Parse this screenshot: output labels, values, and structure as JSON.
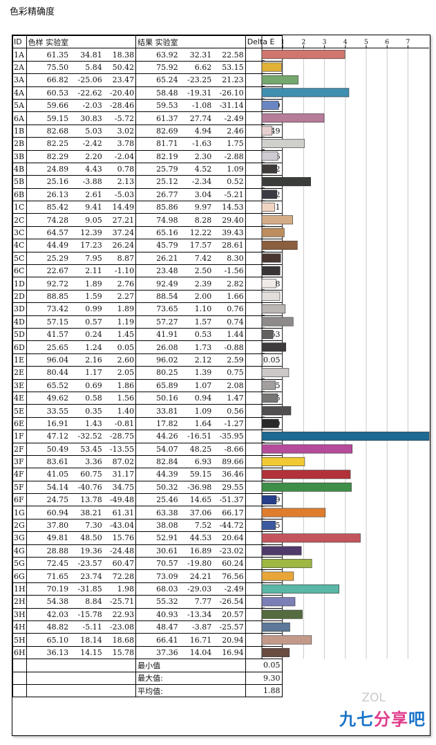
{
  "page_title": "色彩精确度",
  "headers": {
    "id": "ID",
    "sample": "色样 实验室",
    "result": "结果 实验室",
    "delta": "Delta E"
  },
  "chart_data": {
    "type": "bar",
    "orientation": "horizontal",
    "xlim": [
      0,
      8
    ],
    "x_ticks": [
      "1",
      "2",
      "3",
      "4",
      "5",
      "6",
      "7"
    ],
    "grid": true,
    "rows": [
      {
        "id": "1A",
        "s": [
          "61.35",
          "34.81",
          "18.38"
        ],
        "r": [
          "63.92",
          "32.31",
          "22.58"
        ],
        "de": "3.98",
        "v": 3.98,
        "c": "#d0766e"
      },
      {
        "id": "2A",
        "s": [
          "75.50",
          "5.84",
          "50.42"
        ],
        "r": [
          "75.92",
          "6.62",
          "53.15"
        ],
        "de": "0.94",
        "v": 0.94,
        "c": "#e1b135"
      },
      {
        "id": "3A",
        "s": [
          "66.82",
          "-25.06",
          "23.47"
        ],
        "r": [
          "65.24",
          "-23.25",
          "21.23"
        ],
        "de": "1.74",
        "v": 1.74,
        "c": "#74a86e"
      },
      {
        "id": "4A",
        "s": [
          "60.53",
          "-22.62",
          "-20.40"
        ],
        "r": [
          "58.48",
          "-19.31",
          "-26.10"
        ],
        "de": "4.17",
        "v": 4.17,
        "c": "#3f8fb0"
      },
      {
        "id": "5A",
        "s": [
          "59.66",
          "-2.03",
          "-28.46"
        ],
        "r": [
          "59.53",
          "-1.08",
          "-31.14"
        ],
        "de": "0.80",
        "v": 0.8,
        "c": "#6a86c2"
      },
      {
        "id": "6A",
        "s": [
          "59.15",
          "30.83",
          "-5.72"
        ],
        "r": [
          "61.37",
          "27.74",
          "-2.49"
        ],
        "de": "2.98",
        "v": 2.98,
        "c": "#b67d9a"
      },
      {
        "id": "1B",
        "s": [
          "82.68",
          "5.03",
          "3.02"
        ],
        "r": [
          "82.69",
          "4.94",
          "2.46"
        ],
        "de": "0.49",
        "v": 0.49,
        "c": "#e7cfd0"
      },
      {
        "id": "2B",
        "s": [
          "82.25",
          "-2.42",
          "3.78"
        ],
        "r": [
          "81.71",
          "-1.63",
          "1.75"
        ],
        "de": "2.04",
        "v": 2.04,
        "c": "#cfcfcb"
      },
      {
        "id": "3B",
        "s": [
          "82.29",
          "2.20",
          "-2.04"
        ],
        "r": [
          "82.19",
          "2.30",
          "-2.88"
        ],
        "de": "0.76",
        "v": 0.76,
        "c": "#cfcbd3"
      },
      {
        "id": "4B",
        "s": [
          "24.89",
          "4.43",
          "0.78"
        ],
        "r": [
          "25.79",
          "4.52",
          "1.09"
        ],
        "de": "0.72",
        "v": 0.72,
        "c": "#3f3a3a"
      },
      {
        "id": "5B",
        "s": [
          "25.16",
          "-3.88",
          "2.13"
        ],
        "r": [
          "25.12",
          "-2.34",
          "0.52"
        ],
        "de": "2.34",
        "v": 2.34,
        "c": "#3a3d3a"
      },
      {
        "id": "6B",
        "s": [
          "26.13",
          "2.61",
          "-5.03"
        ],
        "r": [
          "26.77",
          "3.04",
          "-5.21"
        ],
        "de": "0.72",
        "v": 0.72,
        "c": "#3c3a44"
      },
      {
        "id": "1C",
        "s": [
          "85.42",
          "9.41",
          "14.49"
        ],
        "r": [
          "85.86",
          "9.97",
          "14.53"
        ],
        "de": "0.61",
        "v": 0.61,
        "c": "#f0d4c2"
      },
      {
        "id": "2C",
        "s": [
          "74.28",
          "9.05",
          "27.21"
        ],
        "r": [
          "74.98",
          "8.28",
          "29.40"
        ],
        "de": "1.48",
        "v": 1.48,
        "c": "#d4ad88"
      },
      {
        "id": "3C",
        "s": [
          "64.57",
          "12.39",
          "37.24"
        ],
        "r": [
          "65.16",
          "12.22",
          "39.43"
        ],
        "de": "1.07",
        "v": 1.07,
        "c": "#bd8d5d"
      },
      {
        "id": "4C",
        "s": [
          "44.49",
          "17.23",
          "26.24"
        ],
        "r": [
          "45.79",
          "17.57",
          "28.61"
        ],
        "de": "1.70",
        "v": 1.7,
        "c": "#8c5f3f"
      },
      {
        "id": "5C",
        "s": [
          "25.29",
          "7.95",
          "8.87"
        ],
        "r": [
          "26.21",
          "7.42",
          "8.30"
        ],
        "de": "0.90",
        "v": 0.9,
        "c": "#4a3630"
      },
      {
        "id": "6C",
        "s": [
          "22.67",
          "2.11",
          "-1.10"
        ],
        "r": [
          "23.48",
          "2.50",
          "-1.56"
        ],
        "de": "0.87",
        "v": 0.87,
        "c": "#393536"
      },
      {
        "id": "1D",
        "s": [
          "92.72",
          "1.89",
          "2.76"
        ],
        "r": [
          "92.49",
          "2.39",
          "2.82"
        ],
        "de": "0.68",
        "v": 0.68,
        "c": "#f0ebe8"
      },
      {
        "id": "2D",
        "s": [
          "88.85",
          "1.59",
          "2.27"
        ],
        "r": [
          "88.54",
          "2.00",
          "1.66"
        ],
        "de": "0.86",
        "v": 0.86,
        "c": "#e3dedc"
      },
      {
        "id": "3D",
        "s": [
          "73.42",
          "0.99",
          "1.89"
        ],
        "r": [
          "73.65",
          "1.10",
          "0.76"
        ],
        "de": "1.12",
        "v": 1.12,
        "c": "#b9b6b4"
      },
      {
        "id": "4D",
        "s": [
          "57.15",
          "0.57",
          "1.19"
        ],
        "r": [
          "57.27",
          "1.57",
          "0.74"
        ],
        "de": "1.50",
        "v": 1.5,
        "c": "#8d8a89"
      },
      {
        "id": "5D",
        "s": [
          "41.57",
          "0.24",
          "1.45"
        ],
        "r": [
          "41.91",
          "0.53",
          "1.44"
        ],
        "de": "0.53",
        "v": 0.53,
        "c": "#636160"
      },
      {
        "id": "6D",
        "s": [
          "25.65",
          "1.24",
          "0.05"
        ],
        "r": [
          "26.08",
          "1.73",
          "-0.88"
        ],
        "de": "1.15",
        "v": 1.15,
        "c": "#3d3b3c"
      },
      {
        "id": "1E",
        "s": [
          "96.04",
          "2.16",
          "2.60"
        ],
        "r": [
          "96.02",
          "2.12",
          "2.59"
        ],
        "de": "0.05",
        "v": 0.05,
        "c": "#f7f2f0"
      },
      {
        "id": "2E",
        "s": [
          "80.44",
          "1.17",
          "2.05"
        ],
        "r": [
          "80.25",
          "1.39",
          "0.75"
        ],
        "de": "1.29",
        "v": 1.29,
        "c": "#cbc8c7"
      },
      {
        "id": "3E",
        "s": [
          "65.52",
          "0.69",
          "1.86"
        ],
        "r": [
          "65.89",
          "1.07",
          "2.08"
        ],
        "de": "0.65",
        "v": 0.65,
        "c": "#a29f9e"
      },
      {
        "id": "4E",
        "s": [
          "49.62",
          "0.58",
          "1.56"
        ],
        "r": [
          "50.16",
          "0.94",
          "1.47"
        ],
        "de": "0.75",
        "v": 0.75,
        "c": "#787675"
      },
      {
        "id": "5E",
        "s": [
          "33.55",
          "0.35",
          "1.40"
        ],
        "r": [
          "33.81",
          "1.09",
          "0.56"
        ],
        "de": "1.39",
        "v": 1.39,
        "c": "#504e4e"
      },
      {
        "id": "6E",
        "s": [
          "16.91",
          "1.43",
          "-0.81"
        ],
        "r": [
          "17.82",
          "1.64",
          "-1.27"
        ],
        "de": "0.80",
        "v": 0.8,
        "c": "#2b2a2b"
      },
      {
        "id": "1F",
        "s": [
          "47.12",
          "-32.52",
          "-28.75"
        ],
        "r": [
          "44.26",
          "-16.51",
          "-35.95"
        ],
        "de": "9.30",
        "v": 9.3,
        "c": "#1d6a93"
      },
      {
        "id": "2F",
        "s": [
          "50.49",
          "53.45",
          "-13.55"
        ],
        "r": [
          "54.07",
          "48.25",
          "-8.66"
        ],
        "de": "4.33",
        "v": 4.33,
        "c": "#b54b9a"
      },
      {
        "id": "3F",
        "s": [
          "83.61",
          "3.36",
          "87.02"
        ],
        "r": [
          "82.84",
          "6.93",
          "89.66"
        ],
        "de": "2.05",
        "v": 2.05,
        "c": "#f1c935"
      },
      {
        "id": "4F",
        "s": [
          "41.05",
          "60.75",
          "31.17"
        ],
        "r": [
          "44.39",
          "59.15",
          "36.46"
        ],
        "de": "4.24",
        "v": 4.24,
        "c": "#b3323a"
      },
      {
        "id": "5F",
        "s": [
          "54.14",
          "-40.76",
          "34.75"
        ],
        "r": [
          "50.32",
          "-36.98",
          "29.55"
        ],
        "de": "4.29",
        "v": 4.29,
        "c": "#3d8e46"
      },
      {
        "id": "6F",
        "s": [
          "24.75",
          "13.78",
          "-49.48"
        ],
        "r": [
          "25.46",
          "14.65",
          "-51.37"
        ],
        "de": "0.69",
        "v": 0.69,
        "c": "#263f8a"
      },
      {
        "id": "1G",
        "s": [
          "60.94",
          "38.21",
          "61.31"
        ],
        "r": [
          "63.38",
          "37.06",
          "66.17"
        ],
        "de": "3.04",
        "v": 3.04,
        "c": "#df7d2f"
      },
      {
        "id": "2G",
        "s": [
          "37.80",
          "7.30",
          "-43.04"
        ],
        "r": [
          "38.08",
          "7.52",
          "-44.72"
        ],
        "de": "0.65",
        "v": 0.65,
        "c": "#3d5a9f"
      },
      {
        "id": "3G",
        "s": [
          "49.81",
          "48.50",
          "15.76"
        ],
        "r": [
          "52.91",
          "44.53",
          "20.64"
        ],
        "de": "4.72",
        "v": 4.72,
        "c": "#c3545d"
      },
      {
        "id": "4G",
        "s": [
          "28.88",
          "19.36",
          "-24.48"
        ],
        "r": [
          "30.61",
          "16.89",
          "-23.02"
        ],
        "de": "1.89",
        "v": 1.89,
        "c": "#503a6a"
      },
      {
        "id": "5G",
        "s": [
          "72.45",
          "-23.57",
          "60.47"
        ],
        "r": [
          "70.57",
          "-19.80",
          "60.24"
        ],
        "de": "2.39",
        "v": 2.39,
        "c": "#9db843"
      },
      {
        "id": "6G",
        "s": [
          "71.65",
          "23.74",
          "72.28"
        ],
        "r": [
          "73.09",
          "24.21",
          "76.56"
        ],
        "de": "1.52",
        "v": 1.52,
        "c": "#e8a53a"
      },
      {
        "id": "1H",
        "s": [
          "70.19",
          "-31.85",
          "1.98"
        ],
        "r": [
          "68.03",
          "-29.03",
          "-2.49"
        ],
        "de": "3.70",
        "v": 3.7,
        "c": "#5ab6a6"
      },
      {
        "id": "2H",
        "s": [
          "54.38",
          "8.84",
          "-25.71"
        ],
        "r": [
          "55.32",
          "7.77",
          "-26.54"
        ],
        "de": "1.59",
        "v": 1.59,
        "c": "#7b7fb6"
      },
      {
        "id": "3H",
        "s": [
          "42.03",
          "-15.78",
          "22.93"
        ],
        "r": [
          "40.93",
          "-13.34",
          "20.57"
        ],
        "de": "1.94",
        "v": 1.94,
        "c": "#556b3f"
      },
      {
        "id": "4H",
        "s": [
          "48.82",
          "-5.11",
          "-23.08"
        ],
        "r": [
          "48.47",
          "-3.87",
          "-25.57"
        ],
        "de": "1.34",
        "v": 1.34,
        "c": "#5d7898"
      },
      {
        "id": "5H",
        "s": [
          "65.10",
          "18.14",
          "18.68"
        ],
        "r": [
          "66.41",
          "16.71",
          "20.94"
        ],
        "de": "2.38",
        "v": 2.38,
        "c": "#c39a8a"
      },
      {
        "id": "6H",
        "s": [
          "36.13",
          "14.15",
          "15.78"
        ],
        "r": [
          "37.36",
          "14.04",
          "16.94"
        ],
        "de": "1.32",
        "v": 1.32,
        "c": "#6a4c40"
      }
    ],
    "summary": [
      {
        "label": "最小值",
        "value": "0.05"
      },
      {
        "label": "最大值:",
        "value": "9.30"
      },
      {
        "label": "平均值:",
        "value": "1.88"
      }
    ]
  },
  "watermark": {
    "zol": "ZOL",
    "brand_a": "九七",
    "brand_b": "分享",
    "brand_c": "吧"
  }
}
